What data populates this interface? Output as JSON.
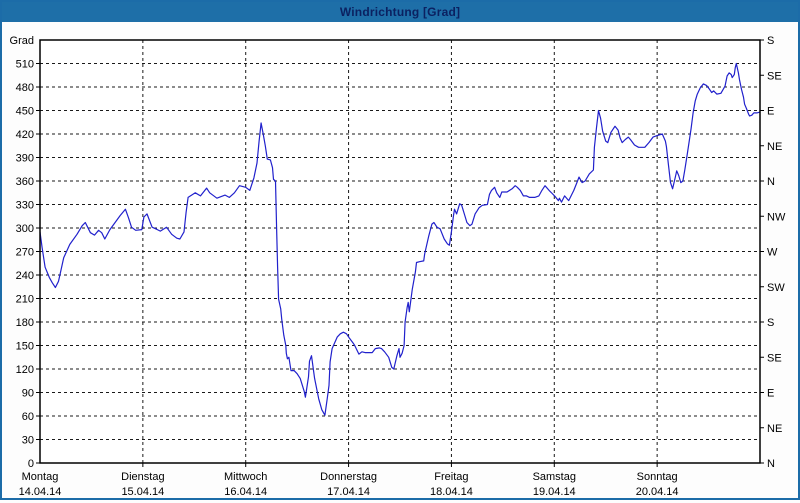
{
  "window": {
    "title": "Windrichtung [Grad]"
  },
  "colors": {
    "titlebar_bg": "#1e6fa8",
    "titlebar_text": "#0b2161",
    "outer_border": "#1c6ca8",
    "plot_bg": "#ffffff",
    "grid": "#1a1a1a",
    "axis": "#000000",
    "line": "#2121cc"
  },
  "chart_data": {
    "type": "line",
    "title": "Windrichtung [Grad]",
    "grid": true,
    "y_left": {
      "label": "Grad",
      "min": 0,
      "max": 540,
      "tick_step": 30,
      "ticks": [
        0,
        30,
        60,
        90,
        120,
        150,
        180,
        210,
        240,
        270,
        300,
        330,
        360,
        390,
        420,
        450,
        480,
        510
      ]
    },
    "y_right": {
      "tick_step": 45,
      "ticks": [
        {
          "value": 0,
          "label": "N"
        },
        {
          "value": 45,
          "label": "NE"
        },
        {
          "value": 90,
          "label": "E"
        },
        {
          "value": 135,
          "label": "SE"
        },
        {
          "value": 180,
          "label": "S"
        },
        {
          "value": 225,
          "label": "SW"
        },
        {
          "value": 270,
          "label": "W"
        },
        {
          "value": 315,
          "label": "NW"
        },
        {
          "value": 360,
          "label": "N"
        },
        {
          "value": 405,
          "label": "NE"
        },
        {
          "value": 450,
          "label": "E"
        },
        {
          "value": 495,
          "label": "SE"
        },
        {
          "value": 540,
          "label": "S"
        }
      ]
    },
    "x_days": [
      {
        "name": "Montag",
        "date": "14.04.14"
      },
      {
        "name": "Dienstag",
        "date": "15.04.14"
      },
      {
        "name": "Mittwoch",
        "date": "16.04.14"
      },
      {
        "name": "Donnerstag",
        "date": "17.04.14"
      },
      {
        "name": "Freitag",
        "date": "18.04.14"
      },
      {
        "name": "Samstag",
        "date": "19.04.14"
      },
      {
        "name": "Sonntag",
        "date": "20.04.14"
      }
    ],
    "x_range_days": [
      0,
      7
    ],
    "series": [
      {
        "name": "Windrichtung",
        "unit": "Grad",
        "points": [
          [
            0.0,
            295
          ],
          [
            0.02,
            275
          ],
          [
            0.05,
            250
          ],
          [
            0.09,
            237
          ],
          [
            0.12,
            230
          ],
          [
            0.15,
            224
          ],
          [
            0.18,
            232
          ],
          [
            0.2,
            244
          ],
          [
            0.23,
            262
          ],
          [
            0.29,
            279
          ],
          [
            0.36,
            292
          ],
          [
            0.41,
            303
          ],
          [
            0.44,
            307
          ],
          [
            0.49,
            294
          ],
          [
            0.53,
            291
          ],
          [
            0.57,
            297
          ],
          [
            0.6,
            294
          ],
          [
            0.63,
            286
          ],
          [
            0.68,
            298
          ],
          [
            0.73,
            307
          ],
          [
            0.78,
            316
          ],
          [
            0.83,
            324
          ],
          [
            0.86,
            313
          ],
          [
            0.89,
            301
          ],
          [
            0.93,
            297
          ],
          [
            0.99,
            298
          ],
          [
            1.01,
            314
          ],
          [
            1.04,
            318
          ],
          [
            1.09,
            301
          ],
          [
            1.14,
            298
          ],
          [
            1.17,
            296
          ],
          [
            1.23,
            301
          ],
          [
            1.28,
            292
          ],
          [
            1.33,
            287
          ],
          [
            1.36,
            286
          ],
          [
            1.4,
            295
          ],
          [
            1.42,
            320
          ],
          [
            1.44,
            339
          ],
          [
            1.51,
            345
          ],
          [
            1.56,
            341
          ],
          [
            1.62,
            351
          ],
          [
            1.65,
            345
          ],
          [
            1.72,
            338
          ],
          [
            1.8,
            342
          ],
          [
            1.84,
            339
          ],
          [
            1.89,
            345
          ],
          [
            1.94,
            354
          ],
          [
            2.0,
            352
          ],
          [
            2.04,
            348
          ],
          [
            2.08,
            364
          ],
          [
            2.11,
            383
          ],
          [
            2.13,
            411
          ],
          [
            2.15,
            434
          ],
          [
            2.17,
            420
          ],
          [
            2.19,
            405
          ],
          [
            2.21,
            388
          ],
          [
            2.24,
            387
          ],
          [
            2.26,
            377
          ],
          [
            2.27,
            362
          ],
          [
            2.29,
            360
          ],
          [
            2.3,
            300
          ],
          [
            2.31,
            250
          ],
          [
            2.32,
            209
          ],
          [
            2.34,
            197
          ],
          [
            2.35,
            184
          ],
          [
            2.37,
            163
          ],
          [
            2.39,
            150
          ],
          [
            2.395,
            140
          ],
          [
            2.405,
            133
          ],
          [
            2.42,
            135
          ],
          [
            2.44,
            118
          ],
          [
            2.47,
            118
          ],
          [
            2.5,
            114
          ],
          [
            2.53,
            108
          ],
          [
            2.57,
            91
          ],
          [
            2.58,
            84
          ],
          [
            2.61,
            110
          ],
          [
            2.62,
            130
          ],
          [
            2.64,
            137
          ],
          [
            2.67,
            108
          ],
          [
            2.71,
            82
          ],
          [
            2.74,
            68
          ],
          [
            2.77,
            61
          ],
          [
            2.79,
            80
          ],
          [
            2.81,
            99
          ],
          [
            2.82,
            129
          ],
          [
            2.84,
            146
          ],
          [
            2.86,
            152
          ],
          [
            2.89,
            161
          ],
          [
            2.92,
            165
          ],
          [
            2.95,
            167
          ],
          [
            2.98,
            165
          ],
          [
            3.01,
            159
          ],
          [
            3.05,
            152
          ],
          [
            3.06,
            150
          ],
          [
            3.1,
            139
          ],
          [
            3.13,
            142
          ],
          [
            3.16,
            141
          ],
          [
            3.2,
            141
          ],
          [
            3.23,
            141
          ],
          [
            3.26,
            146
          ],
          [
            3.3,
            147
          ],
          [
            3.32,
            146
          ],
          [
            3.35,
            142
          ],
          [
            3.39,
            135
          ],
          [
            3.42,
            122
          ],
          [
            3.44,
            120
          ],
          [
            3.47,
            137
          ],
          [
            3.49,
            146
          ],
          [
            3.5,
            135
          ],
          [
            3.52,
            140
          ],
          [
            3.54,
            150
          ],
          [
            3.55,
            180
          ],
          [
            3.57,
            199
          ],
          [
            3.58,
            205
          ],
          [
            3.59,
            193
          ],
          [
            3.62,
            222
          ],
          [
            3.65,
            244
          ],
          [
            3.66,
            256
          ],
          [
            3.69,
            257
          ],
          [
            3.73,
            258
          ],
          [
            3.74,
            267
          ],
          [
            3.78,
            290
          ],
          [
            3.81,
            305
          ],
          [
            3.83,
            307
          ],
          [
            3.86,
            301
          ],
          [
            3.89,
            299
          ],
          [
            3.93,
            286
          ],
          [
            3.96,
            280
          ],
          [
            3.98,
            278
          ],
          [
            4.0,
            295
          ],
          [
            4.02,
            316
          ],
          [
            4.03,
            324
          ],
          [
            4.05,
            318
          ],
          [
            4.08,
            331
          ],
          [
            4.1,
            329
          ],
          [
            4.13,
            316
          ],
          [
            4.15,
            307
          ],
          [
            4.18,
            303
          ],
          [
            4.2,
            305
          ],
          [
            4.23,
            318
          ],
          [
            4.27,
            326
          ],
          [
            4.3,
            329
          ],
          [
            4.35,
            330
          ],
          [
            4.37,
            343
          ],
          [
            4.39,
            348
          ],
          [
            4.42,
            352
          ],
          [
            4.44,
            345
          ],
          [
            4.47,
            339
          ],
          [
            4.49,
            346
          ],
          [
            4.54,
            346
          ],
          [
            4.59,
            350
          ],
          [
            4.62,
            354
          ],
          [
            4.64,
            352
          ],
          [
            4.67,
            348
          ],
          [
            4.7,
            341
          ],
          [
            4.73,
            341
          ],
          [
            4.76,
            339
          ],
          [
            4.81,
            339
          ],
          [
            4.85,
            341
          ],
          [
            4.88,
            348
          ],
          [
            4.91,
            354
          ],
          [
            4.95,
            348
          ],
          [
            4.98,
            344
          ],
          [
            5.01,
            340
          ],
          [
            5.04,
            335
          ],
          [
            5.05,
            338
          ],
          [
            5.07,
            333
          ],
          [
            5.1,
            341
          ],
          [
            5.14,
            335
          ],
          [
            5.19,
            348
          ],
          [
            5.22,
            358
          ],
          [
            5.24,
            365
          ],
          [
            5.27,
            358
          ],
          [
            5.3,
            360
          ],
          [
            5.34,
            369
          ],
          [
            5.38,
            374
          ],
          [
            5.39,
            403
          ],
          [
            5.41,
            428
          ],
          [
            5.43,
            450
          ],
          [
            5.45,
            440
          ],
          [
            5.47,
            424
          ],
          [
            5.5,
            411
          ],
          [
            5.52,
            409
          ],
          [
            5.55,
            422
          ],
          [
            5.59,
            430
          ],
          [
            5.62,
            425
          ],
          [
            5.64,
            415
          ],
          [
            5.66,
            409
          ],
          [
            5.69,
            413
          ],
          [
            5.72,
            416
          ],
          [
            5.74,
            413
          ],
          [
            5.78,
            406
          ],
          [
            5.82,
            403
          ],
          [
            5.88,
            403
          ],
          [
            5.92,
            409
          ],
          [
            5.96,
            416
          ],
          [
            6.0,
            418
          ],
          [
            6.05,
            420
          ],
          [
            6.08,
            411
          ],
          [
            6.09,
            404
          ],
          [
            6.11,
            380
          ],
          [
            6.13,
            358
          ],
          [
            6.15,
            350
          ],
          [
            6.18,
            367
          ],
          [
            6.19,
            373
          ],
          [
            6.21,
            367
          ],
          [
            6.23,
            358
          ],
          [
            6.25,
            360
          ],
          [
            6.27,
            375
          ],
          [
            6.29,
            392
          ],
          [
            6.31,
            409
          ],
          [
            6.33,
            427
          ],
          [
            6.35,
            447
          ],
          [
            6.37,
            462
          ],
          [
            6.39,
            471
          ],
          [
            6.42,
            479
          ],
          [
            6.45,
            484
          ],
          [
            6.48,
            482
          ],
          [
            6.51,
            477
          ],
          [
            6.53,
            473
          ],
          [
            6.55,
            475
          ],
          [
            6.58,
            471
          ],
          [
            6.62,
            472
          ],
          [
            6.66,
            481
          ],
          [
            6.68,
            494
          ],
          [
            6.7,
            498
          ],
          [
            6.72,
            496
          ],
          [
            6.73,
            492
          ],
          [
            6.75,
            496
          ],
          [
            6.76,
            505
          ],
          [
            6.77,
            510
          ],
          [
            6.79,
            498
          ],
          [
            6.8,
            490
          ],
          [
            6.82,
            477
          ],
          [
            6.84,
            467
          ],
          [
            6.85,
            458
          ],
          [
            6.87,
            452
          ],
          [
            6.89,
            445
          ],
          [
            6.9,
            443
          ],
          [
            6.92,
            444
          ],
          [
            6.94,
            447
          ],
          [
            6.97,
            447
          ],
          [
            7.0,
            448
          ]
        ]
      }
    ]
  }
}
